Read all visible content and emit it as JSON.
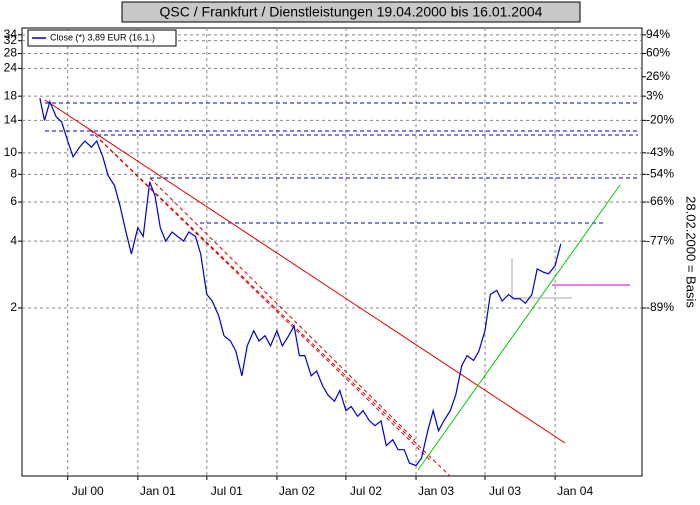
{
  "chart_data": {
    "type": "line",
    "title": "QSC / Frankfurt / Dienstleistungen 19.04.2000 bis 16.01.2004",
    "y2label": "28.02.2000 = Basis",
    "log_scale": true,
    "grid": true,
    "legend": "top-left",
    "x": [
      "2000-04-19",
      "2000-05-01",
      "2000-05-15",
      "2000-06-01",
      "2000-06-15",
      "2000-07-01",
      "2000-07-15",
      "2000-08-01",
      "2000-08-15",
      "2000-09-01",
      "2000-09-15",
      "2000-10-01",
      "2000-10-15",
      "2000-11-01",
      "2000-11-15",
      "2000-12-01",
      "2000-12-15",
      "2001-01-01",
      "2001-01-15",
      "2001-02-01",
      "2001-02-15",
      "2001-03-01",
      "2001-03-15",
      "2001-04-01",
      "2001-04-15",
      "2001-05-01",
      "2001-05-15",
      "2001-06-01",
      "2001-06-15",
      "2001-07-01",
      "2001-07-15",
      "2001-08-01",
      "2001-08-15",
      "2001-09-01",
      "2001-09-15",
      "2001-10-01",
      "2001-10-15",
      "2001-11-01",
      "2001-11-15",
      "2001-12-01",
      "2001-12-15",
      "2002-01-01",
      "2002-01-15",
      "2002-02-01",
      "2002-02-15",
      "2002-03-01",
      "2002-03-15",
      "2002-04-01",
      "2002-04-15",
      "2002-05-01",
      "2002-05-15",
      "2002-06-01",
      "2002-06-15",
      "2002-07-01",
      "2002-07-15",
      "2002-08-01",
      "2002-08-15",
      "2002-09-01",
      "2002-09-15",
      "2002-10-01",
      "2002-10-15",
      "2002-11-01",
      "2002-11-15",
      "2002-12-01",
      "2002-12-15",
      "2003-01-01",
      "2003-01-15",
      "2003-02-01",
      "2003-02-15",
      "2003-03-01",
      "2003-03-15",
      "2003-04-01",
      "2003-04-15",
      "2003-05-01",
      "2003-05-15",
      "2003-06-01",
      "2003-06-15",
      "2003-07-01",
      "2003-07-15",
      "2003-08-01",
      "2003-08-15",
      "2003-09-01",
      "2003-09-15",
      "2003-10-01",
      "2003-10-15",
      "2003-11-01",
      "2003-11-15",
      "2003-12-01",
      "2003-12-15",
      "2004-01-01",
      "2004-01-16"
    ],
    "series": [
      {
        "name": "Close (*) 3,89 EUR (16.1.)",
        "color": "#0000cc",
        "values": [
          17.6,
          14.0,
          17.0,
          14.5,
          13.8,
          11.3,
          9.6,
          10.6,
          11.3,
          10.6,
          11.3,
          9.6,
          7.9,
          7.1,
          5.8,
          4.4,
          3.5,
          4.6,
          4.2,
          7.4,
          6.4,
          4.6,
          4.0,
          4.4,
          4.2,
          4.0,
          4.4,
          4.2,
          3.5,
          2.3,
          2.15,
          1.85,
          1.5,
          1.42,
          1.28,
          0.99,
          1.35,
          1.58,
          1.42,
          1.5,
          1.35,
          1.58,
          1.35,
          1.5,
          1.66,
          1.22,
          1.22,
          0.99,
          1.04,
          0.89,
          0.81,
          0.76,
          0.85,
          0.69,
          0.72,
          0.65,
          0.69,
          0.62,
          0.59,
          0.62,
          0.48,
          0.51,
          0.46,
          0.46,
          0.4,
          0.39,
          0.42,
          0.56,
          0.69,
          0.56,
          0.62,
          0.69,
          0.81,
          1.1,
          1.22,
          1.16,
          1.28,
          1.58,
          2.3,
          2.4,
          2.15,
          2.3,
          2.2,
          2.2,
          2.1,
          2.3,
          3.0,
          2.9,
          2.85,
          3.1,
          3.89
        ]
      }
    ],
    "xlim": [
      "2000-03-03",
      "2004-08-16"
    ],
    "xticks": [
      {
        "value": "2000-07-01",
        "label": "Jul 00"
      },
      {
        "value": "2001-01-01",
        "label": "Jan 01"
      },
      {
        "value": "2001-07-01",
        "label": "Jul 01"
      },
      {
        "value": "2002-01-01",
        "label": "Jan 02"
      },
      {
        "value": "2002-07-01",
        "label": "Jul 02"
      },
      {
        "value": "2003-01-01",
        "label": "Jan 03"
      },
      {
        "value": "2003-07-01",
        "label": "Jul 03"
      },
      {
        "value": "2004-01-01",
        "label": "Jan 04"
      }
    ],
    "ylim": [
      0.35,
      36.5
    ],
    "yticks": [
      34,
      32,
      28,
      24,
      18,
      14,
      10,
      8,
      6,
      4,
      2
    ],
    "y2lim": [
      0.35,
      36.5
    ],
    "y2ticks": [
      {
        "value": 34,
        "label": "94%"
      },
      {
        "value": 28,
        "label": "60%"
      },
      {
        "value": 22,
        "label": "26%"
      },
      {
        "value": 18,
        "label": "3%"
      },
      {
        "value": 14,
        "label": "-20%"
      },
      {
        "value": 10,
        "label": "-43%"
      },
      {
        "value": 8,
        "label": "-54%"
      },
      {
        "value": 6,
        "label": "-66%"
      },
      {
        "value": 4,
        "label": "-77%"
      },
      {
        "value": 2,
        "label": "-89%"
      }
    ]
  }
}
